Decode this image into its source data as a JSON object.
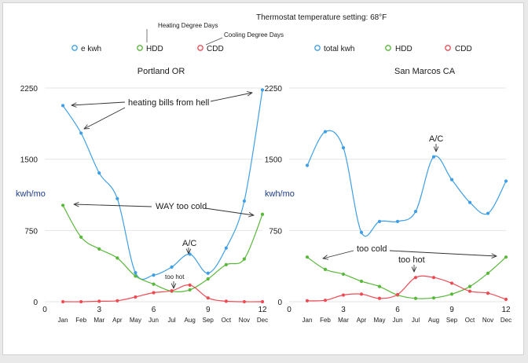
{
  "header": {
    "thermostat_note": "Thermostat temperature setting: 68°F",
    "hdd_note": "Heating Degree Days",
    "cdd_note": "Cooling Degree Days"
  },
  "colors": {
    "kwh": "#3f9fe6",
    "hdd": "#58b83a",
    "cdd": "#ee4b55",
    "grid": "#e4e4e4"
  },
  "chart_data": [
    {
      "type": "line",
      "title": "Portland  OR",
      "ylabel": "kwh/mo",
      "xlabel": "",
      "xlim": [
        0,
        12
      ],
      "ylim": [
        0,
        2250
      ],
      "x_ticks": [
        0,
        3,
        6,
        9,
        12
      ],
      "y_ticks": [
        0,
        750,
        1500,
        2250
      ],
      "month_labels": [
        "Jan",
        "Feb",
        "Mar",
        "Apr",
        "May",
        "Jun",
        "Jul",
        "Aug",
        "Sep",
        "Oct",
        "Nov",
        "Dec"
      ],
      "x": [
        1,
        2,
        3,
        4,
        5,
        6,
        7,
        8,
        9,
        10,
        11,
        12
      ],
      "legend": "top",
      "grid": true,
      "series": [
        {
          "name": "e kwh",
          "key": "kwh",
          "values": [
            2065,
            1775,
            1355,
            1085,
            305,
            280,
            365,
            500,
            300,
            565,
            1060,
            2230
          ]
        },
        {
          "name": "HDD",
          "key": "hdd",
          "values": [
            1015,
            680,
            555,
            460,
            270,
            185,
            110,
            125,
            240,
            390,
            450,
            920
          ]
        },
        {
          "name": "CDD",
          "key": "cdd",
          "values": [
            0,
            0,
            5,
            10,
            50,
            95,
            115,
            175,
            40,
            5,
            0,
            0
          ]
        }
      ],
      "annotations": [
        {
          "text": "heating bills from hell"
        },
        {
          "text": "WAY too cold"
        },
        {
          "text": "A/C"
        },
        {
          "text": "too hot"
        }
      ]
    },
    {
      "type": "line",
      "title": "San Marcos  CA",
      "ylabel": "kwh/mo",
      "xlabel": "",
      "xlim": [
        0,
        12
      ],
      "ylim": [
        0,
        2250
      ],
      "x_ticks": [
        0,
        3,
        6,
        9,
        12
      ],
      "y_ticks": [
        0,
        750,
        1500,
        2250
      ],
      "month_labels": [
        "Jan",
        "Feb",
        "Mar",
        "Apr",
        "May",
        "Jun",
        "Jul",
        "Aug",
        "Sep",
        "Oct",
        "Nov",
        "Dec"
      ],
      "x": [
        1,
        2,
        3,
        4,
        5,
        6,
        7,
        8,
        9,
        10,
        11,
        12
      ],
      "legend": "top",
      "grid": true,
      "series": [
        {
          "name": "total kwh",
          "key": "kwh",
          "values": [
            1435,
            1790,
            1620,
            730,
            845,
            845,
            950,
            1525,
            1285,
            1045,
            930,
            1270
          ]
        },
        {
          "name": "HDD",
          "key": "hdd",
          "values": [
            470,
            340,
            290,
            215,
            160,
            70,
            35,
            40,
            80,
            160,
            300,
            470
          ]
        },
        {
          "name": "CDD",
          "key": "cdd",
          "values": [
            10,
            15,
            70,
            80,
            35,
            75,
            255,
            255,
            195,
            110,
            90,
            25
          ]
        }
      ],
      "annotations": [
        {
          "text": "A/C"
        },
        {
          "text": "too cold"
        },
        {
          "text": "too hot"
        }
      ]
    }
  ]
}
